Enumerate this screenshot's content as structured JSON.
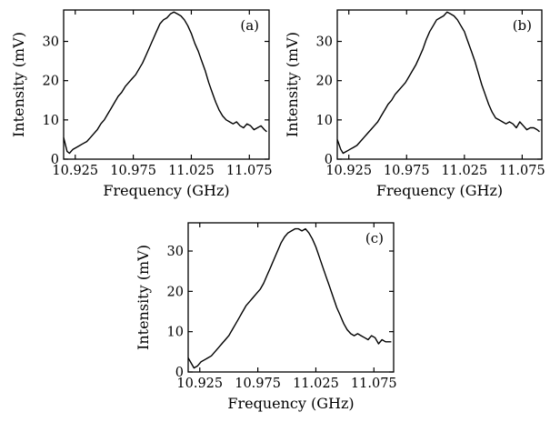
{
  "chart_data": [
    {
      "type": "line",
      "panel_label": "(a)",
      "xlabel": "Frequency (GHz)",
      "ylabel": "Intensity (mV)",
      "xlim": [
        10.915,
        11.092
      ],
      "ylim": [
        0,
        38
      ],
      "xticks": [
        10.925,
        10.975,
        11.025,
        11.075
      ],
      "xtick_labels": [
        "10.925",
        "10.975",
        "11.025",
        "11.075"
      ],
      "yticks": [
        0,
        10,
        20,
        30
      ],
      "ytick_labels": [
        "0",
        "10",
        "20",
        "30"
      ],
      "grid": false,
      "series": [
        {
          "x": [
            10.915,
            10.918,
            10.92,
            10.923,
            10.926,
            10.929,
            10.932,
            10.935,
            10.938,
            10.941,
            10.944,
            10.947,
            10.95,
            10.953,
            10.956,
            10.959,
            10.962,
            10.965,
            10.968,
            10.971,
            10.974,
            10.977,
            10.98,
            10.983,
            10.986,
            10.989,
            10.992,
            10.995,
            10.998,
            11.001,
            11.004,
            11.007,
            11.01,
            11.013,
            11.016,
            11.019,
            11.022,
            11.025,
            11.028,
            11.031,
            11.034,
            11.037,
            11.04,
            11.043,
            11.046,
            11.049,
            11.052,
            11.055,
            11.058,
            11.061,
            11.064,
            11.067,
            11.07,
            11.073,
            11.076,
            11.079,
            11.082,
            11.085,
            11.088,
            11.09
          ],
          "y": [
            5.5,
            2.0,
            1.5,
            2.5,
            3.0,
            3.5,
            4.0,
            4.5,
            5.5,
            6.5,
            7.5,
            9.0,
            10.0,
            11.5,
            13.0,
            14.5,
            16.0,
            17.0,
            18.5,
            19.5,
            20.5,
            21.5,
            23.0,
            24.5,
            26.5,
            28.5,
            30.5,
            32.5,
            34.5,
            35.5,
            36.0,
            37.0,
            37.5,
            37.0,
            36.5,
            35.5,
            34.0,
            32.0,
            29.5,
            27.5,
            25.0,
            22.5,
            19.5,
            17.0,
            14.5,
            12.5,
            11.0,
            10.0,
            9.5,
            9.0,
            9.5,
            8.5,
            8.0,
            9.0,
            8.5,
            7.5,
            8.0,
            8.5,
            7.5,
            7.0
          ]
        }
      ]
    },
    {
      "type": "line",
      "panel_label": "(b)",
      "xlabel": "Frequency (GHz)",
      "ylabel": "Intensity (mV)",
      "xlim": [
        10.915,
        11.092
      ],
      "ylim": [
        0,
        38
      ],
      "xticks": [
        10.925,
        10.975,
        11.025,
        11.075
      ],
      "xtick_labels": [
        "10.925",
        "10.975",
        "11.025",
        "11.075"
      ],
      "yticks": [
        0,
        10,
        20,
        30
      ],
      "ytick_labels": [
        "0",
        "10",
        "20",
        "30"
      ],
      "grid": false,
      "series": [
        {
          "x": [
            10.915,
            10.918,
            10.92,
            10.923,
            10.926,
            10.929,
            10.932,
            10.935,
            10.938,
            10.941,
            10.944,
            10.947,
            10.95,
            10.953,
            10.956,
            10.959,
            10.962,
            10.965,
            10.968,
            10.971,
            10.974,
            10.977,
            10.98,
            10.983,
            10.986,
            10.989,
            10.992,
            10.995,
            10.998,
            11.001,
            11.004,
            11.007,
            11.01,
            11.013,
            11.016,
            11.019,
            11.022,
            11.025,
            11.028,
            11.031,
            11.034,
            11.037,
            11.04,
            11.043,
            11.046,
            11.049,
            11.052,
            11.055,
            11.058,
            11.061,
            11.064,
            11.067,
            11.07,
            11.073,
            11.076,
            11.079,
            11.082,
            11.085,
            11.088,
            11.09
          ],
          "y": [
            5.0,
            2.5,
            1.5,
            2.0,
            2.5,
            3.0,
            3.5,
            4.5,
            5.5,
            6.5,
            7.5,
            8.5,
            9.5,
            11.0,
            12.5,
            14.0,
            15.0,
            16.5,
            17.5,
            18.5,
            19.5,
            21.0,
            22.5,
            24.0,
            26.0,
            28.0,
            30.5,
            32.5,
            34.0,
            35.5,
            36.0,
            36.5,
            37.5,
            37.0,
            36.5,
            35.5,
            34.0,
            32.5,
            30.0,
            27.5,
            25.0,
            22.0,
            19.0,
            16.5,
            14.0,
            12.0,
            10.5,
            10.0,
            9.5,
            9.0,
            9.5,
            9.0,
            8.0,
            9.5,
            8.5,
            7.5,
            8.0,
            8.0,
            7.5,
            7.0
          ]
        }
      ]
    },
    {
      "type": "line",
      "panel_label": "(c)",
      "xlabel": "Frequency (GHz)",
      "ylabel": "Intensity (mV)",
      "xlim": [
        10.915,
        11.092
      ],
      "ylim": [
        0,
        37
      ],
      "xticks": [
        10.925,
        10.975,
        11.025,
        11.075
      ],
      "xtick_labels": [
        "10.925",
        "10.975",
        "11.025",
        "11.075"
      ],
      "yticks": [
        0,
        10,
        20,
        30
      ],
      "ytick_labels": [
        "0",
        "10",
        "20",
        "30"
      ],
      "grid": false,
      "series": [
        {
          "x": [
            10.915,
            10.918,
            10.92,
            10.923,
            10.926,
            10.929,
            10.932,
            10.935,
            10.938,
            10.941,
            10.944,
            10.947,
            10.95,
            10.953,
            10.956,
            10.959,
            10.962,
            10.965,
            10.968,
            10.971,
            10.974,
            10.977,
            10.98,
            10.983,
            10.986,
            10.989,
            10.992,
            10.995,
            10.998,
            11.001,
            11.004,
            11.007,
            11.01,
            11.013,
            11.016,
            11.019,
            11.022,
            11.025,
            11.028,
            11.031,
            11.034,
            11.037,
            11.04,
            11.043,
            11.046,
            11.049,
            11.052,
            11.055,
            11.058,
            11.061,
            11.064,
            11.067,
            11.07,
            11.073,
            11.076,
            11.079,
            11.082,
            11.085,
            11.088,
            11.09
          ],
          "y": [
            3.5,
            2.0,
            1.0,
            1.5,
            2.5,
            3.0,
            3.5,
            4.0,
            5.0,
            6.0,
            7.0,
            8.0,
            9.0,
            10.5,
            12.0,
            13.5,
            15.0,
            16.5,
            17.5,
            18.5,
            19.5,
            20.5,
            22.0,
            24.0,
            26.0,
            28.0,
            30.0,
            32.0,
            33.5,
            34.5,
            35.0,
            35.5,
            35.5,
            35.0,
            35.5,
            34.5,
            33.0,
            31.0,
            28.5,
            26.0,
            23.5,
            21.0,
            18.5,
            16.0,
            14.0,
            12.0,
            10.5,
            9.5,
            9.0,
            9.5,
            9.0,
            8.5,
            8.0,
            9.0,
            8.5,
            7.0,
            8.0,
            7.5,
            7.5,
            7.5
          ]
        }
      ]
    }
  ]
}
